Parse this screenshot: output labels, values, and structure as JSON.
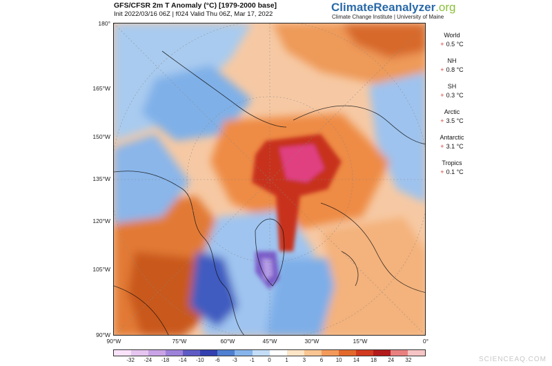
{
  "header": {
    "title": "GFS/CFSR 2m T Anomaly (°C) [1979-2000 base]",
    "subtitle": "Init 2022/03/16 06Z | f024 Valid Thu 06Z, Mar 17, 2022"
  },
  "brand": {
    "name_main": "ClimateReanalyzer",
    "name_suffix": ".org",
    "affiliation": "Climate Change Institute | University of Maine"
  },
  "map": {
    "y_labels": [
      "180°",
      "165°W",
      "150°W",
      "135°W",
      "120°W",
      "105°W",
      "90°W"
    ],
    "x_labels": [
      "90°W",
      "75°W",
      "60°W",
      "45°W",
      "30°W",
      "15°W",
      "0°"
    ]
  },
  "stats": [
    {
      "name": "World",
      "value": "0.5 °C"
    },
    {
      "name": "NH",
      "value": "0.8 °C"
    },
    {
      "name": "SH",
      "value": "0.3 °C"
    },
    {
      "name": "Arctic",
      "value": "3.5 °C"
    },
    {
      "name": "Antarctic",
      "value": "3.1 °C"
    },
    {
      "name": "Tropics",
      "value": "0.1 °C"
    }
  ],
  "stat_sign": "+",
  "colorbar": {
    "labels": [
      "-32",
      "-24",
      "-18",
      "-14",
      "-10",
      "-6",
      "-3",
      "-1",
      "0",
      "1",
      "3",
      "6",
      "10",
      "14",
      "18",
      "24",
      "32"
    ],
    "colors": [
      "#fbe3fb",
      "#e6c6f0",
      "#c9a3e6",
      "#9d82da",
      "#5e5bc4",
      "#3440b0",
      "#4f7fd0",
      "#86b5ec",
      "#c4def8",
      "#ffffff",
      "#fde5c7",
      "#f9c592",
      "#f39a5a",
      "#e2692b",
      "#d23a20",
      "#b31a1a",
      "#e88080",
      "#f6c4c4"
    ]
  },
  "watermark": "SCIENCEAQ.COM"
}
